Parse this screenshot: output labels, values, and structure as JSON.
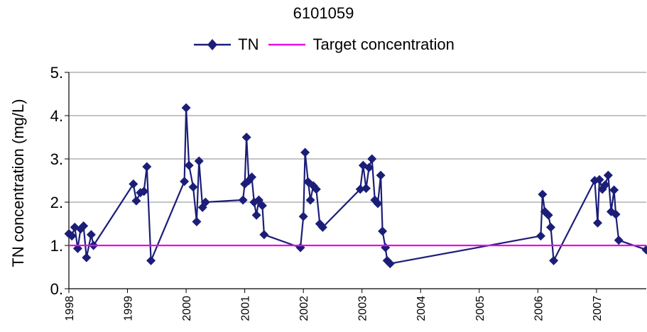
{
  "chart_data": {
    "type": "line",
    "title": "6101059",
    "xlabel": "",
    "ylabel": "TN concentration (mg/L)",
    "ylim": [
      0,
      5
    ],
    "yticks": [
      "0.",
      "1.",
      "2.",
      "3.",
      "4.",
      "5."
    ],
    "xlim": [
      1998.0,
      2007.85
    ],
    "xticks": [
      "1998",
      "1999",
      "2000",
      "2001",
      "2002",
      "2003",
      "2004",
      "2005",
      "2006",
      "2007"
    ],
    "grid": "horizontal",
    "legend_position": "top",
    "series": [
      {
        "name": "TN",
        "color": "#1b1e78",
        "marker": "diamond",
        "points": [
          [
            1998.0,
            1.27
          ],
          [
            1998.05,
            1.22
          ],
          [
            1998.1,
            1.42
          ],
          [
            1998.15,
            0.93
          ],
          [
            1998.2,
            1.38
          ],
          [
            1998.25,
            1.45
          ],
          [
            1998.3,
            0.72
          ],
          [
            1998.38,
            1.25
          ],
          [
            1998.42,
            1.0
          ],
          [
            1999.1,
            2.42
          ],
          [
            1999.15,
            2.03
          ],
          [
            1999.22,
            2.22
          ],
          [
            1999.28,
            2.25
          ],
          [
            1999.33,
            2.82
          ],
          [
            1999.4,
            0.65
          ],
          [
            1999.97,
            2.48
          ],
          [
            2000.0,
            4.18
          ],
          [
            2000.05,
            2.85
          ],
          [
            2000.12,
            2.35
          ],
          [
            2000.18,
            1.55
          ],
          [
            2000.22,
            2.95
          ],
          [
            2000.28,
            1.88
          ],
          [
            2000.33,
            2.0
          ],
          [
            2000.97,
            2.05
          ],
          [
            2001.0,
            2.42
          ],
          [
            2001.03,
            3.5
          ],
          [
            2001.07,
            2.5
          ],
          [
            2001.12,
            2.58
          ],
          [
            2001.16,
            2.0
          ],
          [
            2001.2,
            1.7
          ],
          [
            2001.24,
            2.05
          ],
          [
            2001.3,
            1.92
          ],
          [
            2001.33,
            1.25
          ],
          [
            2001.95,
            0.95
          ],
          [
            2002.0,
            1.67
          ],
          [
            2002.03,
            3.15
          ],
          [
            2002.08,
            2.47
          ],
          [
            2002.12,
            2.05
          ],
          [
            2002.17,
            2.38
          ],
          [
            2002.22,
            2.3
          ],
          [
            2002.28,
            1.5
          ],
          [
            2002.33,
            1.42
          ],
          [
            2002.97,
            2.3
          ],
          [
            2003.02,
            2.85
          ],
          [
            2003.07,
            2.32
          ],
          [
            2003.12,
            2.8
          ],
          [
            2003.17,
            3.0
          ],
          [
            2003.22,
            2.05
          ],
          [
            2003.27,
            1.97
          ],
          [
            2003.32,
            2.62
          ],
          [
            2003.35,
            1.33
          ],
          [
            2003.4,
            0.95
          ],
          [
            2003.43,
            0.65
          ],
          [
            2003.48,
            0.58
          ],
          [
            2006.05,
            1.22
          ],
          [
            2006.08,
            2.18
          ],
          [
            2006.12,
            1.78
          ],
          [
            2006.18,
            1.7
          ],
          [
            2006.22,
            1.42
          ],
          [
            2006.27,
            0.65
          ],
          [
            2006.97,
            2.5
          ],
          [
            2007.02,
            1.52
          ],
          [
            2007.05,
            2.52
          ],
          [
            2007.1,
            2.3
          ],
          [
            2007.15,
            2.4
          ],
          [
            2007.2,
            2.62
          ],
          [
            2007.25,
            1.78
          ],
          [
            2007.3,
            2.28
          ],
          [
            2007.33,
            1.72
          ],
          [
            2007.38,
            1.12
          ],
          [
            2007.85,
            0.9
          ]
        ]
      },
      {
        "name": "Target concentration",
        "color": "#e60ce6",
        "marker": "none",
        "points": [
          [
            1998.0,
            1.0
          ],
          [
            2007.85,
            1.0
          ]
        ]
      }
    ]
  }
}
